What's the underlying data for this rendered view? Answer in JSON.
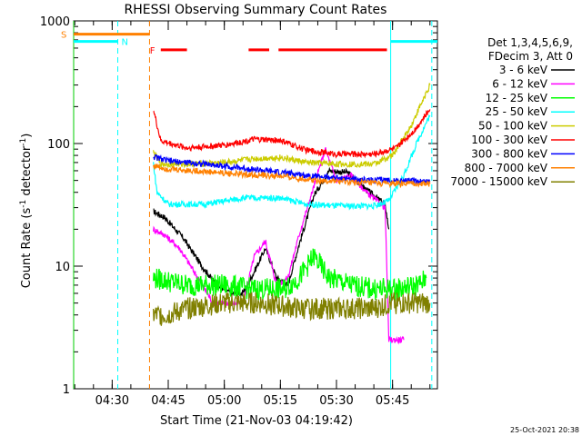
{
  "chart_data": {
    "type": "line",
    "title": "RHESSI Observing Summary Count Rates",
    "xlabel": "Start Time (21-Nov-03 04:19:42)",
    "ylabel_main": "Count Rate (s",
    "ylabel_sup1": "-1",
    "ylabel_mid": " detector",
    "ylabel_sup2": "-1",
    "ylabel_end": ")",
    "footer": "25-Oct-2021 20:38",
    "yscale": "log",
    "ylim": [
      1,
      1000
    ],
    "xlim": [
      "04:19:42",
      "05:57:00"
    ],
    "yticks": [
      {
        "v": 1,
        "label": "1"
      },
      {
        "v": 10,
        "label": "10"
      },
      {
        "v": 100,
        "label": "100"
      },
      {
        "v": 1000,
        "label": "1000"
      }
    ],
    "xticks": [
      {
        "t": "04:30",
        "label": "04:30"
      },
      {
        "t": "04:45",
        "label": "04:45"
      },
      {
        "t": "05:00",
        "label": "05:00"
      },
      {
        "t": "05:15",
        "label": "05:15"
      },
      {
        "t": "05:30",
        "label": "05:30"
      },
      {
        "t": "05:45",
        "label": "05:45"
      }
    ],
    "legend_header": [
      "Det 1,3,4,5,6,9,",
      "FDecim 3, Att 0"
    ],
    "legend_position": "right",
    "series": [
      {
        "name": "3 - 6 keV",
        "color": "#000000",
        "points": [
          [
            "04:41:00",
            28
          ],
          [
            "04:44:00",
            25
          ],
          [
            "04:49:00",
            17
          ],
          [
            "04:54:00",
            10
          ],
          [
            "04:58:00",
            7
          ],
          [
            "05:02:00",
            6
          ],
          [
            "05:05:00",
            6
          ],
          [
            "05:08:00",
            9
          ],
          [
            "05:11:00",
            14
          ],
          [
            "05:14:00",
            8
          ],
          [
            "05:17:00",
            7
          ],
          [
            "05:20:00",
            15
          ],
          [
            "05:24:00",
            38
          ],
          [
            "05:28:00",
            60
          ],
          [
            "05:33:00",
            58
          ],
          [
            "05:38:00",
            42
          ],
          [
            "05:43:00",
            32
          ],
          [
            "05:44:00",
            20
          ]
        ]
      },
      {
        "name": "6 - 12 keV",
        "color": "#ff00ff",
        "points": [
          [
            "04:41:00",
            20
          ],
          [
            "04:44:00",
            18
          ],
          [
            "04:48:00",
            14
          ],
          [
            "04:53:00",
            8
          ],
          [
            "04:57:00",
            5
          ],
          [
            "05:01:00",
            5
          ],
          [
            "05:05:00",
            5
          ],
          [
            "05:08:00",
            12
          ],
          [
            "05:11:00",
            16
          ],
          [
            "05:14:00",
            7
          ],
          [
            "05:17:00",
            8
          ],
          [
            "05:20:00",
            18
          ],
          [
            "05:24:00",
            45
          ],
          [
            "05:27:00",
            90
          ],
          [
            "05:30:00",
            50
          ],
          [
            "05:34:00",
            55
          ],
          [
            "05:38:00",
            40
          ],
          [
            "05:43:00",
            30
          ],
          [
            "05:44:00",
            2.5
          ],
          [
            "05:48:00",
            2.5
          ]
        ]
      },
      {
        "name": "12 - 25 keV",
        "color": "#00ff00",
        "points": [
          [
            "04:41:00",
            8
          ],
          [
            "04:50:00",
            7
          ],
          [
            "05:00:00",
            7
          ],
          [
            "05:08:00",
            6.5
          ],
          [
            "05:16:00",
            6.5
          ],
          [
            "05:20:00",
            8
          ],
          [
            "05:24:00",
            12
          ],
          [
            "05:28:00",
            8
          ],
          [
            "05:34:00",
            7
          ],
          [
            "05:40:00",
            6.5
          ],
          [
            "05:46:00",
            6.5
          ],
          [
            "05:52:00",
            7
          ],
          [
            "05:54:00",
            8
          ]
        ]
      },
      {
        "name": "25 - 50 keV",
        "color": "#00ffff",
        "points": [
          [
            "04:41:00",
            70
          ],
          [
            "04:42:00",
            40
          ],
          [
            "04:45:00",
            32
          ],
          [
            "04:55:00",
            32
          ],
          [
            "05:05:00",
            36
          ],
          [
            "05:15:00",
            36
          ],
          [
            "05:22:00",
            32
          ],
          [
            "05:30:00",
            31
          ],
          [
            "05:40:00",
            31
          ],
          [
            "05:44:00",
            34
          ],
          [
            "05:48:00",
            55
          ],
          [
            "05:52:00",
            110
          ],
          [
            "05:55:00",
            170
          ]
        ]
      },
      {
        "name": "50 - 100 keV",
        "color": "#cccc00",
        "points": [
          [
            "04:41:00",
            85
          ],
          [
            "04:43:00",
            68
          ],
          [
            "04:50:00",
            68
          ],
          [
            "05:00:00",
            70
          ],
          [
            "05:08:00",
            75
          ],
          [
            "05:15:00",
            77
          ],
          [
            "05:22:00",
            70
          ],
          [
            "05:30:00",
            68
          ],
          [
            "05:40:00",
            68
          ],
          [
            "05:45:00",
            80
          ],
          [
            "05:50:00",
            140
          ],
          [
            "05:55:00",
            300
          ]
        ]
      },
      {
        "name": "100 - 300 keV",
        "color": "#ff0000",
        "points": [
          [
            "04:41:00",
            190
          ],
          [
            "04:43:00",
            105
          ],
          [
            "04:50:00",
            92
          ],
          [
            "05:00:00",
            97
          ],
          [
            "05:08:00",
            108
          ],
          [
            "05:15:00",
            106
          ],
          [
            "05:22:00",
            88
          ],
          [
            "05:30:00",
            82
          ],
          [
            "05:40:00",
            82
          ],
          [
            "05:46:00",
            92
          ],
          [
            "05:51:00",
            130
          ],
          [
            "05:55:00",
            190
          ]
        ]
      },
      {
        "name": "300 - 800 keV",
        "color": "#0000ff",
        "points": [
          [
            "04:41:00",
            78
          ],
          [
            "04:45:00",
            72
          ],
          [
            "04:55:00",
            68
          ],
          [
            "05:05:00",
            63
          ],
          [
            "05:15:00",
            58
          ],
          [
            "05:25:00",
            54
          ],
          [
            "05:35:00",
            51
          ],
          [
            "05:45:00",
            50
          ],
          [
            "05:55:00",
            49
          ]
        ]
      },
      {
        "name": "800 - 7000 keV",
        "color": "#ff8000",
        "points": [
          [
            "04:41:00",
            66
          ],
          [
            "04:45:00",
            62
          ],
          [
            "04:55:00",
            59
          ],
          [
            "05:05:00",
            56
          ],
          [
            "05:15:00",
            54
          ],
          [
            "05:25:00",
            50
          ],
          [
            "05:35:00",
            48
          ],
          [
            "05:45:00",
            47
          ],
          [
            "05:55:00",
            47
          ]
        ]
      },
      {
        "name": "7000 - 15000 keV",
        "color": "#808000",
        "points": [
          [
            "04:41:00",
            4
          ],
          [
            "04:45:00",
            4
          ],
          [
            "04:50:00",
            4.5
          ],
          [
            "05:00:00",
            5
          ],
          [
            "05:10:00",
            5
          ],
          [
            "05:20:00",
            4.5
          ],
          [
            "05:30:00",
            4.5
          ],
          [
            "05:40:00",
            4.5
          ],
          [
            "05:45:00",
            5
          ],
          [
            "05:55:00",
            5
          ]
        ]
      }
    ],
    "bands": [
      {
        "letter": "S",
        "color": "#ff8000",
        "value": 780,
        "start": "04:19:42",
        "end": "04:40:00"
      },
      {
        "letter": "N",
        "color": "#00ffff",
        "value": 680,
        "start": "04:19:42",
        "end": "04:31:30"
      },
      {
        "letter": "",
        "color": "#00ffff",
        "value": 680,
        "start": "05:44:30",
        "end": "05:57:00"
      },
      {
        "letter": "F",
        "color": "#ff0000",
        "value": 580,
        "start": "04:43:00",
        "end": "04:50:00"
      },
      {
        "letter": "",
        "color": "#ff0000",
        "value": 580,
        "start": "05:06:30",
        "end": "05:12:00"
      },
      {
        "letter": "",
        "color": "#ff0000",
        "value": 580,
        "start": "05:14:30",
        "end": "05:43:30"
      }
    ],
    "vlines": [
      {
        "t": "04:19:42",
        "color": "#00cc00",
        "dash": false
      },
      {
        "t": "04:31:30",
        "color": "#00ffff",
        "dash": true
      },
      {
        "t": "04:40:00",
        "color": "#ff8000",
        "dash": true
      },
      {
        "t": "05:44:30",
        "color": "#00ffff",
        "dash": false
      },
      {
        "t": "05:55:30",
        "color": "#00ffff",
        "dash": true
      }
    ]
  }
}
